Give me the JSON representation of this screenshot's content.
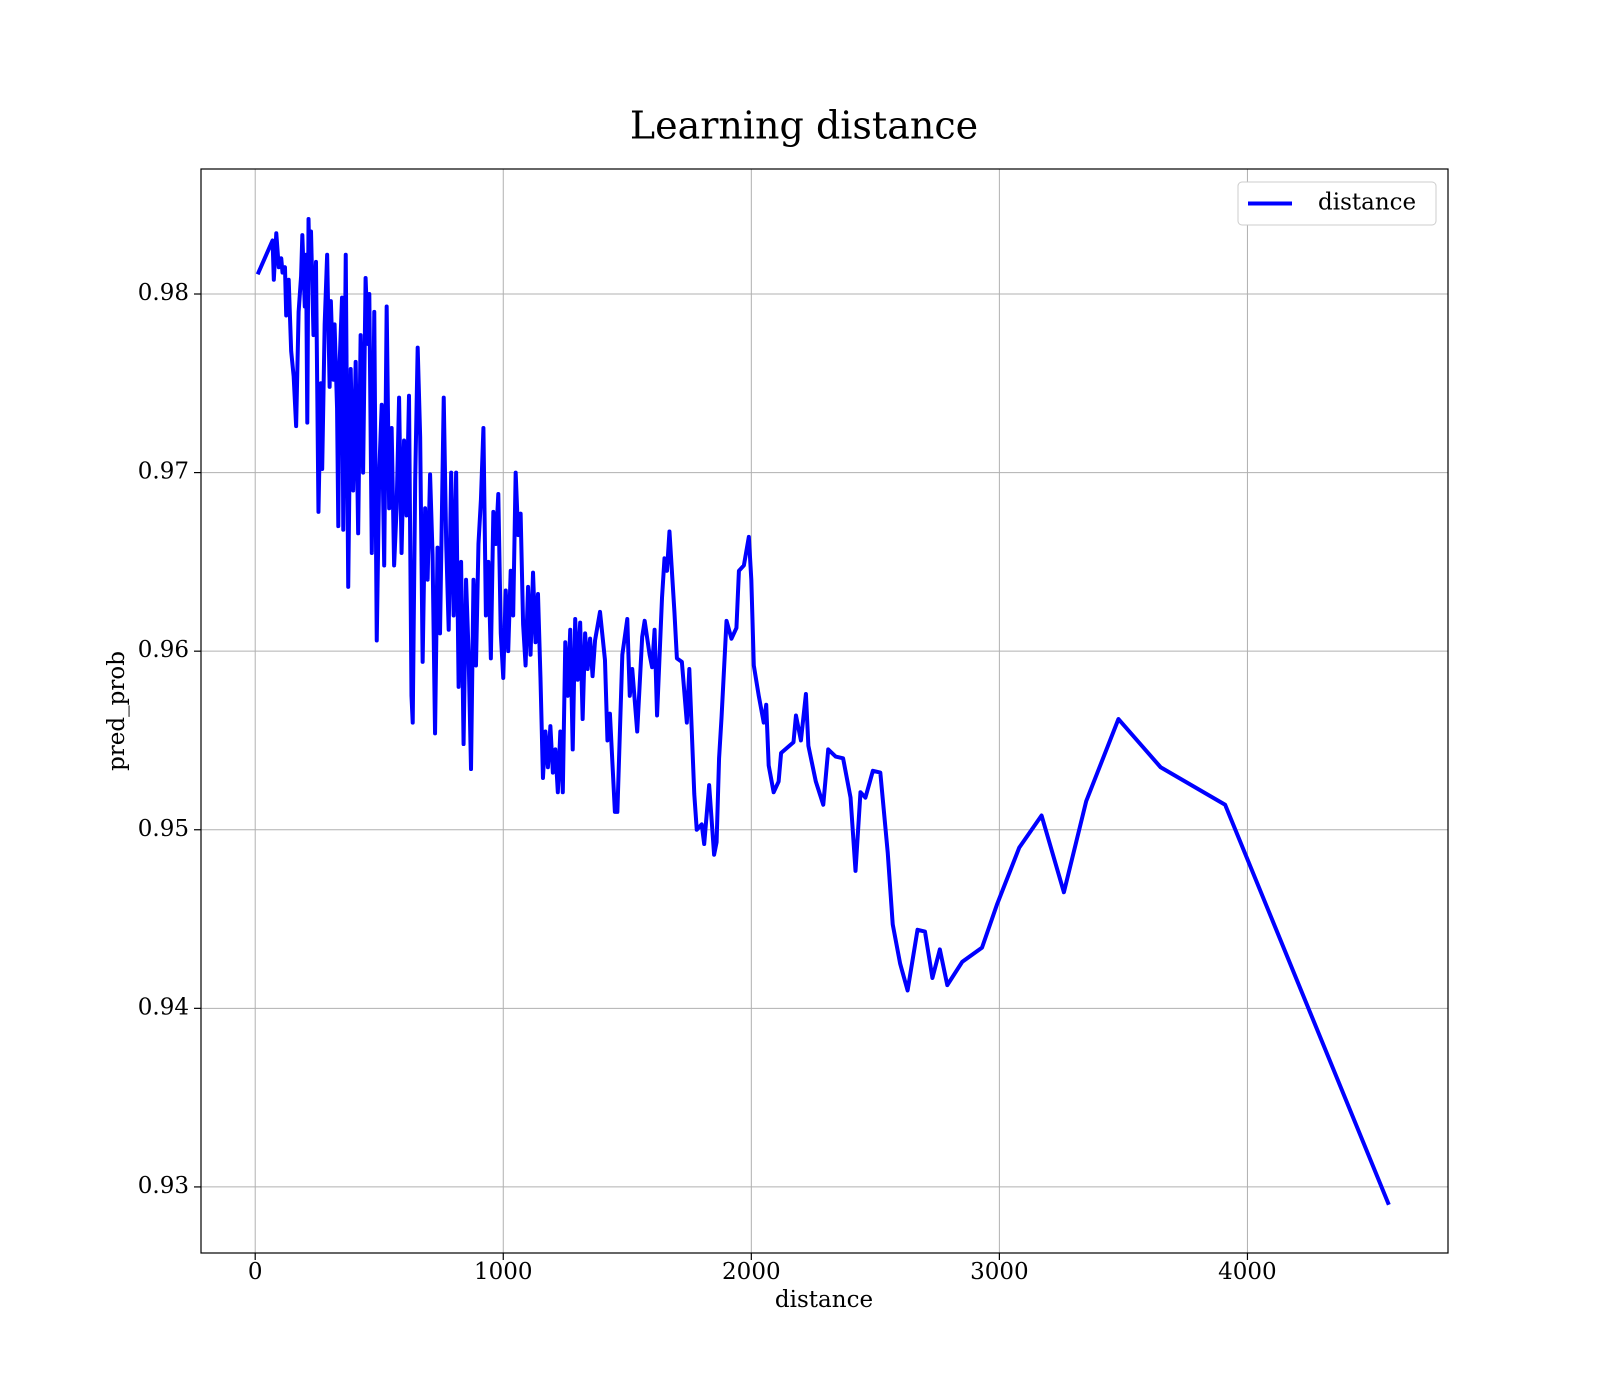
{
  "chart_data": {
    "type": "line",
    "title": "Learning distance",
    "xlabel": "distance",
    "ylabel": "pred_prob",
    "x": [
      10,
      70,
      75,
      85,
      95,
      105,
      110,
      120,
      125,
      135,
      145,
      155,
      165,
      175,
      185,
      190,
      200,
      205,
      210,
      215,
      220,
      225,
      235,
      245,
      255,
      265,
      270,
      280,
      290,
      300,
      305,
      315,
      320,
      330,
      335,
      340,
      350,
      355,
      365,
      375,
      385,
      395,
      405,
      415,
      425,
      435,
      445,
      455,
      460,
      470,
      480,
      490,
      500,
      510,
      520,
      530,
      540,
      550,
      560,
      570,
      580,
      590,
      600,
      610,
      620,
      630,
      635,
      645,
      655,
      665,
      675,
      685,
      695,
      705,
      715,
      725,
      735,
      745,
      760,
      770,
      780,
      790,
      800,
      810,
      820,
      830,
      840,
      850,
      860,
      870,
      880,
      890,
      900,
      910,
      920,
      930,
      940,
      950,
      960,
      970,
      980,
      990,
      1000,
      1010,
      1020,
      1030,
      1040,
      1050,
      1060,
      1070,
      1080,
      1090,
      1100,
      1110,
      1120,
      1130,
      1140,
      1150,
      1160,
      1170,
      1180,
      1190,
      1200,
      1210,
      1220,
      1230,
      1240,
      1250,
      1260,
      1270,
      1280,
      1290,
      1300,
      1310,
      1320,
      1330,
      1340,
      1350,
      1360,
      1370,
      1390,
      1410,
      1420,
      1430,
      1450,
      1460,
      1480,
      1500,
      1510,
      1520,
      1540,
      1560,
      1570,
      1590,
      1600,
      1610,
      1620,
      1640,
      1650,
      1660,
      1670,
      1690,
      1700,
      1720,
      1740,
      1750,
      1770,
      1780,
      1800,
      1810,
      1830,
      1850,
      1860,
      1870,
      1880,
      1900,
      1920,
      1940,
      1950,
      1970,
      1990,
      2000,
      2010,
      2030,
      2050,
      2060,
      2070,
      2090,
      2110,
      2120,
      2170,
      2180,
      2200,
      2220,
      2230,
      2260,
      2290,
      2310,
      2340,
      2370,
      2400,
      2420,
      2440,
      2460,
      2490,
      2520,
      2550,
      2570,
      2600,
      2630,
      2670,
      2700,
      2730,
      2760,
      2790,
      2850,
      2930,
      2990,
      3080,
      3170,
      3260,
      3350,
      3480,
      3650,
      3910,
      4570
    ],
    "series": [
      {
        "name": "distance",
        "color": "#0000ff",
        "values": [
          0.9811,
          0.983,
          0.9808,
          0.9834,
          0.9815,
          0.982,
          0.9812,
          0.9815,
          0.9788,
          0.9808,
          0.9768,
          0.9754,
          0.9726,
          0.979,
          0.981,
          0.9833,
          0.9793,
          0.9822,
          0.9728,
          0.9842,
          0.981,
          0.9835,
          0.9777,
          0.9818,
          0.9678,
          0.975,
          0.9702,
          0.9783,
          0.9822,
          0.9748,
          0.9796,
          0.9752,
          0.9783,
          0.9736,
          0.967,
          0.976,
          0.9798,
          0.9668,
          0.9822,
          0.9636,
          0.9758,
          0.969,
          0.9762,
          0.9666,
          0.9777,
          0.97,
          0.9809,
          0.9772,
          0.98,
          0.9655,
          0.979,
          0.9606,
          0.97,
          0.9738,
          0.9648,
          0.9793,
          0.968,
          0.9725,
          0.9648,
          0.968,
          0.9742,
          0.9655,
          0.9718,
          0.9676,
          0.9743,
          0.9575,
          0.956,
          0.9696,
          0.977,
          0.972,
          0.9594,
          0.968,
          0.964,
          0.9699,
          0.9654,
          0.9554,
          0.9658,
          0.961,
          0.9742,
          0.966,
          0.9612,
          0.97,
          0.962,
          0.97,
          0.958,
          0.965,
          0.9548,
          0.964,
          0.96,
          0.9534,
          0.964,
          0.9592,
          0.966,
          0.9685,
          0.9725,
          0.962,
          0.965,
          0.9596,
          0.9678,
          0.966,
          0.9688,
          0.961,
          0.9585,
          0.9634,
          0.96,
          0.9645,
          0.962,
          0.97,
          0.9665,
          0.9677,
          0.9615,
          0.9592,
          0.9636,
          0.9598,
          0.9644,
          0.9605,
          0.9632,
          0.9585,
          0.9529,
          0.9555,
          0.9535,
          0.9558,
          0.9532,
          0.9545,
          0.9521,
          0.9555,
          0.9521,
          0.9605,
          0.9575,
          0.9612,
          0.9545,
          0.9618,
          0.9584,
          0.9616,
          0.9562,
          0.961,
          0.959,
          0.9607,
          0.9586,
          0.9606,
          0.9622,
          0.9595,
          0.955,
          0.9565,
          0.951,
          0.951,
          0.9598,
          0.9618,
          0.9575,
          0.959,
          0.9555,
          0.9608,
          0.9617,
          0.9598,
          0.9591,
          0.9612,
          0.9564,
          0.963,
          0.9652,
          0.9645,
          0.9667,
          0.9622,
          0.9596,
          0.9594,
          0.956,
          0.959,
          0.952,
          0.95,
          0.9503,
          0.9492,
          0.9525,
          0.9486,
          0.9493,
          0.954,
          0.9563,
          0.9617,
          0.9607,
          0.9613,
          0.9645,
          0.9648,
          0.9664,
          0.964,
          0.9592,
          0.9575,
          0.956,
          0.957,
          0.9536,
          0.9521,
          0.9527,
          0.9543,
          0.9549,
          0.9564,
          0.955,
          0.9576,
          0.9547,
          0.9527,
          0.9514,
          0.9545,
          0.9541,
          0.954,
          0.9518,
          0.9477,
          0.9521,
          0.9518,
          0.9533,
          0.9532,
          0.9487,
          0.9447,
          0.9425,
          0.941,
          0.9444,
          0.9443,
          0.9417,
          0.9433,
          0.9413,
          0.9426,
          0.9434,
          0.9458,
          0.949,
          0.9508,
          0.9465,
          0.9516,
          0.9562,
          0.9535,
          0.9514,
          0.929
        ]
      }
    ],
    "xlim": [
      -218.5,
      4808.5
    ],
    "ylim": [
      0.9263,
      0.987
    ],
    "xticks": [
      0,
      1000,
      2000,
      3000,
      4000
    ],
    "yticks": [
      0.93,
      0.94,
      0.95,
      0.96,
      0.97,
      0.98
    ],
    "grid": true,
    "legend": "upper right"
  }
}
